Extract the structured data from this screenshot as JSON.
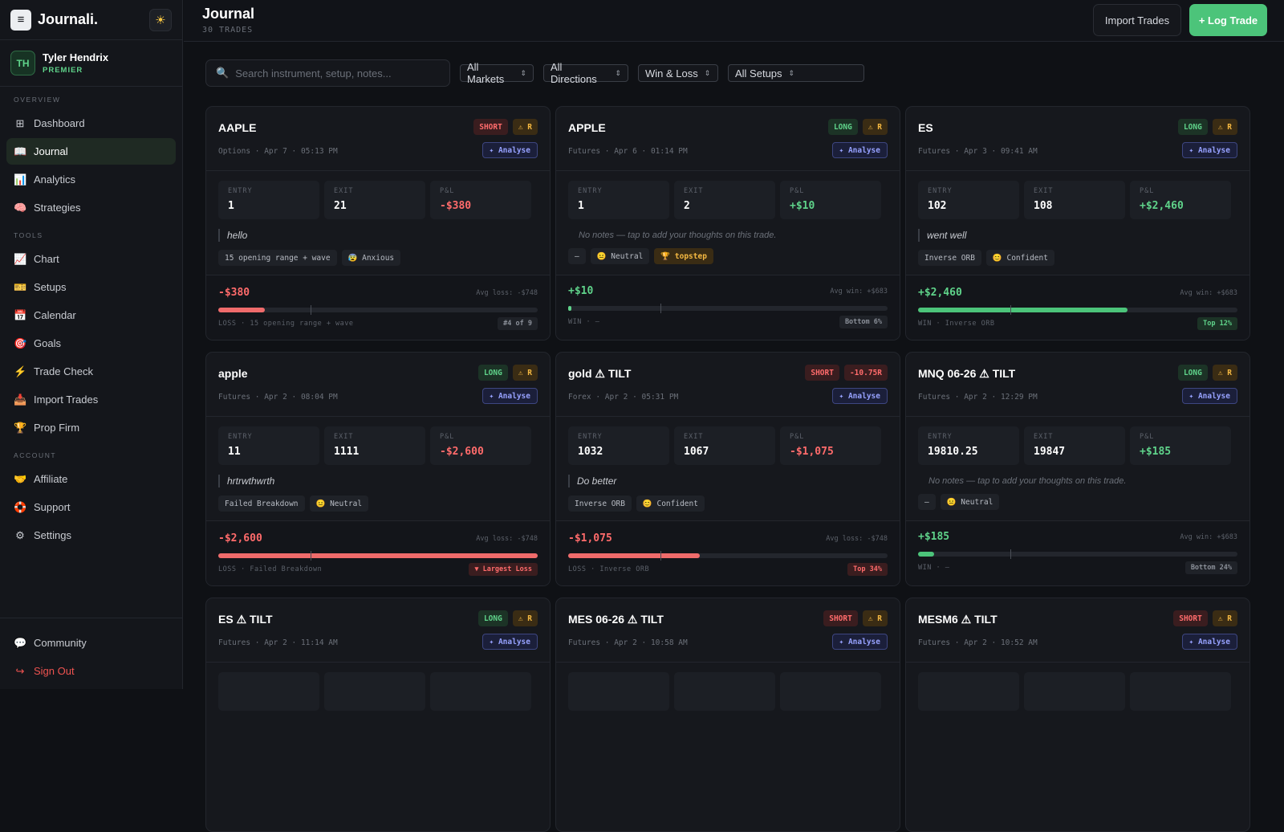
{
  "app": {
    "name": "Journali.",
    "logo_icon": "notebook-icon",
    "theme_icon": "sun-icon"
  },
  "user": {
    "initials": "TH",
    "name": "Tyler Hendrix",
    "plan": "PREMIER"
  },
  "nav": {
    "overview_label": "OVERVIEW",
    "overview": [
      {
        "label": "Dashboard",
        "icon": "⊞",
        "active": false
      },
      {
        "label": "Journal",
        "icon": "📖",
        "active": true
      },
      {
        "label": "Analytics",
        "icon": "📊",
        "active": false
      },
      {
        "label": "Strategies",
        "icon": "🧠",
        "active": false
      }
    ],
    "tools_label": "TOOLS",
    "tools": [
      {
        "label": "Chart",
        "icon": "📈"
      },
      {
        "label": "Setups",
        "icon": "🎫"
      },
      {
        "label": "Calendar",
        "icon": "📅"
      },
      {
        "label": "Goals",
        "icon": "🎯"
      },
      {
        "label": "Trade Check",
        "icon": "⚡"
      },
      {
        "label": "Import Trades",
        "icon": "📥"
      },
      {
        "label": "Prop Firm",
        "icon": "🏆"
      }
    ],
    "account_label": "ACCOUNT",
    "account": [
      {
        "label": "Affiliate",
        "icon": "🤝"
      },
      {
        "label": "Support",
        "icon": "🛟"
      },
      {
        "label": "Settings",
        "icon": "⚙"
      }
    ],
    "bottom": [
      {
        "label": "Community",
        "icon": "💬"
      },
      {
        "label": "Sign Out",
        "icon": "↪"
      }
    ]
  },
  "header": {
    "title": "Journal",
    "subtitle": "30 TRADES",
    "import_label": "Import Trades",
    "log_label": "+ Log Trade"
  },
  "filters": {
    "search_placeholder": "Search instrument, setup, notes...",
    "selects": [
      "All Markets",
      "All Directions",
      "Win & Loss",
      "All Setups"
    ]
  },
  "labels": {
    "entry": "ENTRY",
    "exit": "EXIT",
    "pnl": "P&L",
    "analyse": "✦ Analyse"
  },
  "cards": [
    {
      "symbol": "AAPLE",
      "direction": "SHORT",
      "extra_badge": "⚠ R",
      "extra_type": "r",
      "meta": "Options · Apr 7 · 05:13 PM",
      "entry": "1",
      "exit": "21",
      "pnl": "-$380",
      "pnl_sign": "neg",
      "note": "hello",
      "note_empty": false,
      "tags": [
        {
          "text": "15 opening range + wave",
          "gold": false
        },
        {
          "text": "😰 Anxious",
          "gold": false
        }
      ],
      "foot_pnl": "-$380",
      "avg": "Avg loss: -$748",
      "bar_fill": 0.146,
      "bar_color": "#ef6b6b",
      "foot_label": "LOSS · 15 opening range + wave",
      "rank": "#4 of 9",
      "rank_type": "grey"
    },
    {
      "symbol": "APPLE",
      "direction": "LONG",
      "extra_badge": "⚠ R",
      "extra_type": "r",
      "meta": "Futures · Apr 6 · 01:14 PM",
      "entry": "1",
      "exit": "2",
      "pnl": "+$10",
      "pnl_sign": "pos",
      "note": "No notes — tap to add your thoughts on this trade.",
      "note_empty": true,
      "tags": [
        {
          "text": "—",
          "gold": false
        },
        {
          "text": "😐 Neutral",
          "gold": false
        },
        {
          "text": "🏆 topstep",
          "gold": true
        }
      ],
      "foot_pnl": "+$10",
      "avg": "Avg win: +$683",
      "bar_fill": 0.01,
      "bar_color": "#5fd38a",
      "foot_label": "WIN · —",
      "rank": "Bottom 6%",
      "rank_type": "grey"
    },
    {
      "symbol": "ES",
      "direction": "LONG",
      "extra_badge": "⚠ R",
      "extra_type": "r",
      "meta": "Futures · Apr 3 · 09:41 AM",
      "entry": "102",
      "exit": "108",
      "pnl": "+$2,460",
      "pnl_sign": "pos",
      "note": "went well",
      "note_empty": false,
      "tags": [
        {
          "text": "Inverse ORB",
          "gold": false
        },
        {
          "text": "😊 Confident",
          "gold": false
        }
      ],
      "foot_pnl": "+$2,460",
      "avg": "Avg win: +$683",
      "bar_fill": 0.655,
      "bar_color": "#4cc47a",
      "foot_label": "WIN · Inverse ORB",
      "rank": "Top 12%",
      "rank_type": "green"
    },
    {
      "symbol": "apple",
      "direction": "LONG",
      "extra_badge": "⚠ R",
      "extra_type": "r",
      "meta": "Futures · Apr 2 · 08:04 PM",
      "entry": "11",
      "exit": "1111",
      "pnl": "-$2,600",
      "pnl_sign": "neg",
      "note": "hrtrwthwrth",
      "note_empty": false,
      "tags": [
        {
          "text": "Failed Breakdown",
          "gold": false
        },
        {
          "text": "😐 Neutral",
          "gold": false
        }
      ],
      "foot_pnl": "-$2,600",
      "avg": "Avg loss: -$748",
      "bar_fill": 1.0,
      "bar_color": "#ef6b6b",
      "foot_label": "LOSS · Failed Breakdown",
      "rank": "▼ Largest Loss",
      "rank_type": "red"
    },
    {
      "symbol": "gold ⚠ TILT",
      "direction": "SHORT",
      "extra_badge": "-10.75R",
      "extra_type": "neg",
      "meta": "Forex · Apr 2 · 05:31 PM",
      "entry": "1032",
      "exit": "1067",
      "pnl": "-$1,075",
      "pnl_sign": "neg",
      "note": "Do better",
      "note_empty": false,
      "tags": [
        {
          "text": "Inverse ORB",
          "gold": false
        },
        {
          "text": "😊 Confident",
          "gold": false
        }
      ],
      "foot_pnl": "-$1,075",
      "avg": "Avg loss: -$748",
      "bar_fill": 0.413,
      "bar_color": "#ef6b6b",
      "foot_label": "LOSS · Inverse ORB",
      "rank": "Top 34%",
      "rank_type": "red"
    },
    {
      "symbol": "MNQ 06-26 ⚠ TILT",
      "direction": "LONG",
      "extra_badge": "⚠ R",
      "extra_type": "r",
      "meta": "Futures · Apr 2 · 12:29 PM",
      "entry": "19810.25",
      "exit": "19847",
      "pnl": "+$185",
      "pnl_sign": "pos",
      "note": "No notes — tap to add your thoughts on this trade.",
      "note_empty": true,
      "tags": [
        {
          "text": "—",
          "gold": false
        },
        {
          "text": "😐 Neutral",
          "gold": false
        }
      ],
      "foot_pnl": "+$185",
      "avg": "Avg win: +$683",
      "bar_fill": 0.05,
      "bar_color": "#4cc47a",
      "foot_label": "WIN · —",
      "rank": "Bottom 24%",
      "rank_type": "grey"
    },
    {
      "symbol": "ES ⚠ TILT",
      "direction": "LONG",
      "extra_badge": "⚠ R",
      "extra_type": "r",
      "meta": "Futures · Apr 2 · 11:14 AM"
    },
    {
      "symbol": "MES 06-26 ⚠ TILT",
      "direction": "SHORT",
      "extra_badge": "⚠ R",
      "extra_type": "r",
      "meta": "Futures · Apr 2 · 10:58 AM"
    },
    {
      "symbol": "MESM6 ⚠ TILT",
      "direction": "SHORT",
      "extra_badge": "⚠ R",
      "extra_type": "r",
      "meta": "Futures · Apr 2 · 10:52 AM"
    }
  ]
}
